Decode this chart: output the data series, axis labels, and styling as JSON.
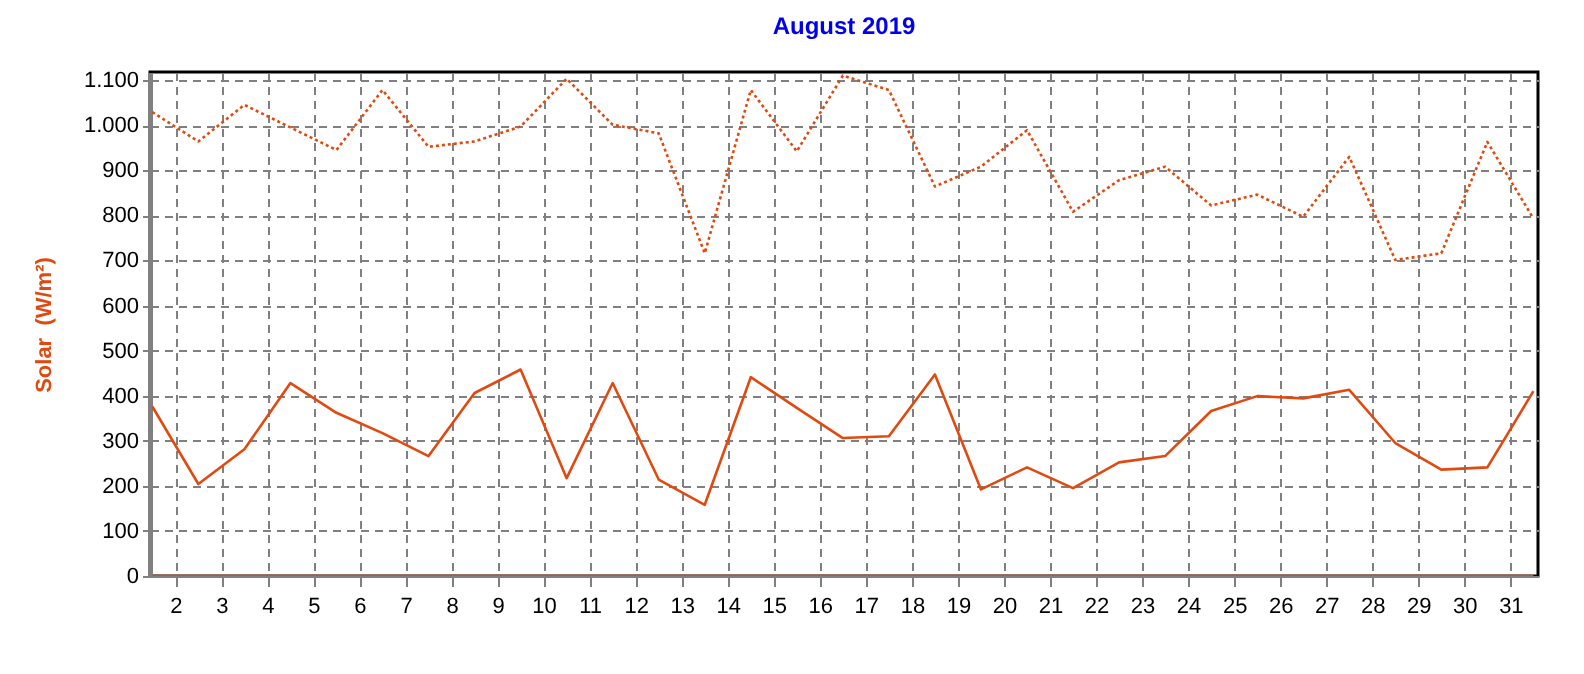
{
  "chart_data": {
    "type": "line",
    "title": "August 2019",
    "ylabel": "Solar  (W/m²)",
    "x": [
      1.5,
      2.5,
      3.5,
      4.5,
      5.5,
      6.5,
      7.5,
      8.5,
      9.5,
      10.5,
      11.5,
      12.5,
      13.5,
      14.5,
      15.5,
      16.5,
      17.5,
      18.5,
      19.5,
      20.5,
      21.5,
      22.5,
      23.5,
      24.5,
      25.5,
      26.5,
      27.5,
      28.5,
      29.5,
      30.5,
      31.5
    ],
    "xlim": [
      1.45,
      31.6
    ],
    "xticks": [
      2,
      3,
      4,
      5,
      6,
      7,
      8,
      9,
      10,
      11,
      12,
      13,
      14,
      15,
      16,
      17,
      18,
      19,
      20,
      21,
      22,
      23,
      24,
      25,
      26,
      27,
      28,
      29,
      30,
      31
    ],
    "ylim": [
      0,
      1118
    ],
    "yticks": [
      0,
      100,
      200,
      300,
      400,
      500,
      600,
      700,
      800,
      900,
      {
        "value": 1000,
        "label": "1.000"
      },
      {
        "value": 1100,
        "label": "1.100"
      }
    ],
    "grid": true,
    "series": [
      {
        "color": "#e04a10",
        "line_style": "dotted",
        "values": [
          1029,
          964,
          1045,
          995,
          945,
          1078,
          952,
          964,
          997,
          1103,
          1001,
          982,
          716,
          1078,
          942,
          1110,
          1078,
          864,
          908,
          989,
          808,
          878,
          908,
          822,
          846,
          797,
          930,
          701,
          716,
          963,
          793
        ]
      },
      {
        "color": "#e04a10",
        "line_style": "solid",
        "values": [
          376,
          204,
          281,
          428,
          362,
          317,
          266,
          406,
          458,
          217,
          428,
          214,
          158,
          441,
          373,
          306,
          310,
          447,
          192,
          241,
          195,
          252,
          266,
          366,
          399,
          394,
          413,
          295,
          236,
          241,
          410
        ]
      },
      {
        "color": "#e04a10",
        "line_style": "solid",
        "values": [
          0,
          0,
          0,
          0,
          0,
          0,
          0,
          0,
          0,
          0,
          0,
          0,
          0,
          0,
          0,
          0,
          0,
          0,
          0,
          0,
          0,
          0,
          0,
          0,
          0,
          0,
          0,
          0,
          0,
          0,
          0
        ]
      }
    ]
  }
}
